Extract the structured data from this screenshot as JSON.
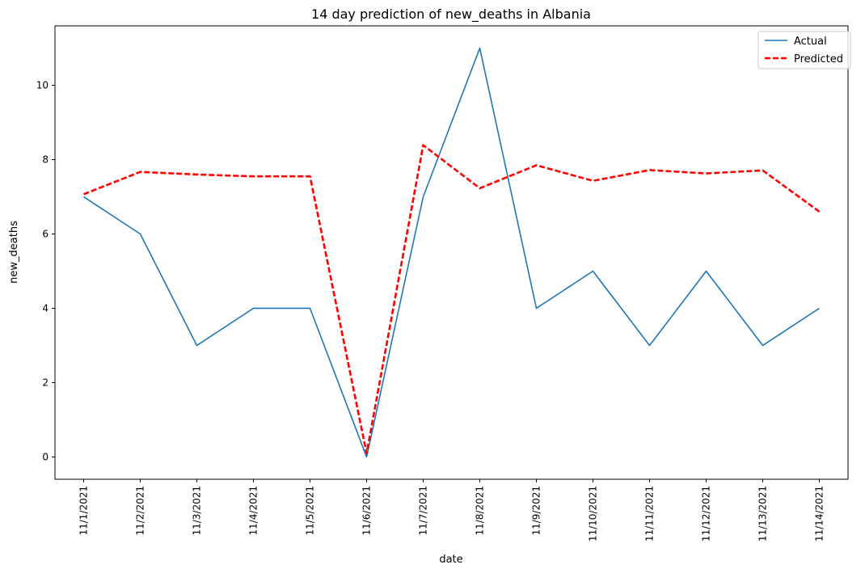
{
  "chart_data": {
    "type": "line",
    "title": "14 day prediction of new_deaths in Albania",
    "xlabel": "date",
    "ylabel": "new_deaths",
    "categories": [
      "11/1/2021",
      "11/2/2021",
      "11/3/2021",
      "11/4/2021",
      "11/5/2021",
      "11/6/2021",
      "11/7/2021",
      "11/8/2021",
      "11/9/2021",
      "11/10/2021",
      "11/11/2021",
      "11/12/2021",
      "11/13/2021",
      "11/14/2021"
    ],
    "ylim": [
      -0.6,
      11.6
    ],
    "yticks": [
      0,
      2,
      4,
      6,
      8,
      10
    ],
    "grid": false,
    "legend_position": "top-right",
    "series": [
      {
        "name": "Actual",
        "color": "#1f77b4",
        "style": "solid",
        "values": [
          7,
          6,
          3,
          4,
          4,
          0,
          7,
          11,
          4,
          5,
          3,
          5,
          3,
          4
        ]
      },
      {
        "name": "Predicted",
        "color": "#ff0000",
        "style": "dashed",
        "values": [
          7.07,
          7.67,
          7.6,
          7.55,
          7.55,
          0.1,
          8.39,
          7.23,
          7.85,
          7.43,
          7.72,
          7.63,
          7.71,
          6.6
        ]
      }
    ]
  }
}
